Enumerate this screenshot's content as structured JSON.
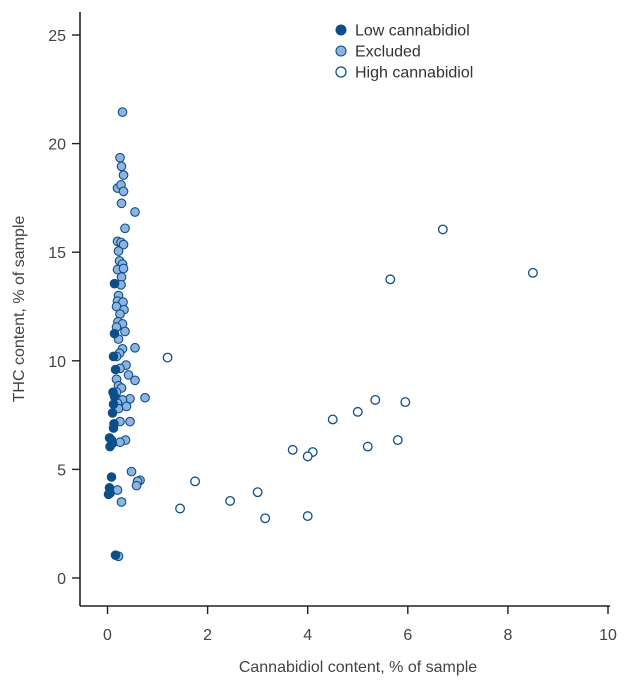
{
  "chart_data": {
    "type": "scatter",
    "xlabel": "Cannabidiol content, % of sample",
    "ylabel": "THC content, % of sample",
    "xlim": [
      0,
      10
    ],
    "ylim": [
      0,
      25
    ],
    "xticks": [
      "0",
      "2",
      "4",
      "6",
      "8",
      "10"
    ],
    "yticks": [
      "0",
      "5",
      "10",
      "15",
      "20",
      "25"
    ],
    "grid": false,
    "legend_position": "top-right",
    "series": [
      {
        "name": "Low cannabidiol",
        "marker": "filled-dark",
        "color": "#0b4f8a",
        "points": [
          [
            0.05,
            3.9
          ],
          [
            0.02,
            3.85
          ],
          [
            0.04,
            4.15
          ],
          [
            0.08,
            4.65
          ],
          [
            0.05,
            6.05
          ],
          [
            0.04,
            6.45
          ],
          [
            0.08,
            6.35
          ],
          [
            0.12,
            6.9
          ],
          [
            0.13,
            7.1
          ],
          [
            0.1,
            7.6
          ],
          [
            0.12,
            8.0
          ],
          [
            0.14,
            8.35
          ],
          [
            0.11,
            8.55
          ],
          [
            0.16,
            9.6
          ],
          [
            0.12,
            10.2
          ],
          [
            0.14,
            11.25
          ],
          [
            0.14,
            13.55
          ],
          [
            0.16,
            1.05
          ],
          [
            0.1,
            6.2
          ]
        ]
      },
      {
        "name": "Excluded",
        "marker": "filled-light",
        "color": "#8fb3dd",
        "points": [
          [
            0.3,
            21.45
          ],
          [
            0.25,
            19.35
          ],
          [
            0.28,
            18.95
          ],
          [
            0.32,
            18.55
          ],
          [
            0.2,
            17.95
          ],
          [
            0.27,
            18.1
          ],
          [
            0.32,
            17.8
          ],
          [
            0.28,
            17.25
          ],
          [
            0.55,
            16.85
          ],
          [
            0.35,
            16.1
          ],
          [
            0.2,
            15.5
          ],
          [
            0.27,
            15.45
          ],
          [
            0.32,
            15.35
          ],
          [
            0.22,
            15.05
          ],
          [
            0.24,
            14.6
          ],
          [
            0.3,
            14.45
          ],
          [
            0.2,
            14.2
          ],
          [
            0.32,
            14.25
          ],
          [
            0.28,
            13.85
          ],
          [
            0.27,
            13.5
          ],
          [
            0.22,
            13.0
          ],
          [
            0.2,
            12.75
          ],
          [
            0.31,
            12.7
          ],
          [
            0.18,
            12.5
          ],
          [
            0.33,
            12.35
          ],
          [
            0.25,
            12.15
          ],
          [
            0.21,
            11.8
          ],
          [
            0.3,
            11.7
          ],
          [
            0.18,
            11.55
          ],
          [
            0.35,
            11.35
          ],
          [
            0.22,
            11.0
          ],
          [
            0.55,
            10.6
          ],
          [
            0.3,
            10.55
          ],
          [
            0.24,
            10.35
          ],
          [
            0.18,
            10.2
          ],
          [
            0.37,
            9.8
          ],
          [
            0.25,
            9.65
          ],
          [
            0.42,
            9.35
          ],
          [
            0.55,
            9.1
          ],
          [
            0.18,
            9.15
          ],
          [
            0.22,
            8.85
          ],
          [
            0.28,
            8.75
          ],
          [
            0.18,
            8.55
          ],
          [
            0.75,
            8.3
          ],
          [
            0.45,
            8.25
          ],
          [
            0.3,
            8.2
          ],
          [
            0.2,
            8.05
          ],
          [
            0.22,
            7.8
          ],
          [
            0.38,
            7.9
          ],
          [
            0.45,
            7.2
          ],
          [
            0.25,
            7.2
          ],
          [
            0.36,
            6.35
          ],
          [
            0.25,
            6.25
          ],
          [
            0.48,
            4.9
          ],
          [
            0.65,
            4.5
          ],
          [
            0.6,
            4.45
          ],
          [
            0.58,
            4.25
          ],
          [
            0.2,
            4.05
          ],
          [
            0.28,
            3.5
          ],
          [
            0.22,
            1.0
          ]
        ]
      },
      {
        "name": "High cannabidiol",
        "marker": "open",
        "color": "#0b4f8a",
        "points": [
          [
            6.7,
            16.05
          ],
          [
            8.5,
            14.05
          ],
          [
            5.65,
            13.75
          ],
          [
            1.2,
            10.15
          ],
          [
            5.35,
            8.2
          ],
          [
            5.95,
            8.1
          ],
          [
            5.0,
            7.65
          ],
          [
            4.5,
            7.3
          ],
          [
            3.7,
            5.9
          ],
          [
            4.1,
            5.8
          ],
          [
            4.0,
            5.6
          ],
          [
            5.2,
            6.05
          ],
          [
            5.8,
            6.35
          ],
          [
            1.75,
            4.45
          ],
          [
            3.0,
            3.95
          ],
          [
            2.45,
            3.55
          ],
          [
            1.45,
            3.2
          ],
          [
            3.15,
            2.75
          ],
          [
            4.0,
            2.85
          ]
        ]
      }
    ]
  }
}
